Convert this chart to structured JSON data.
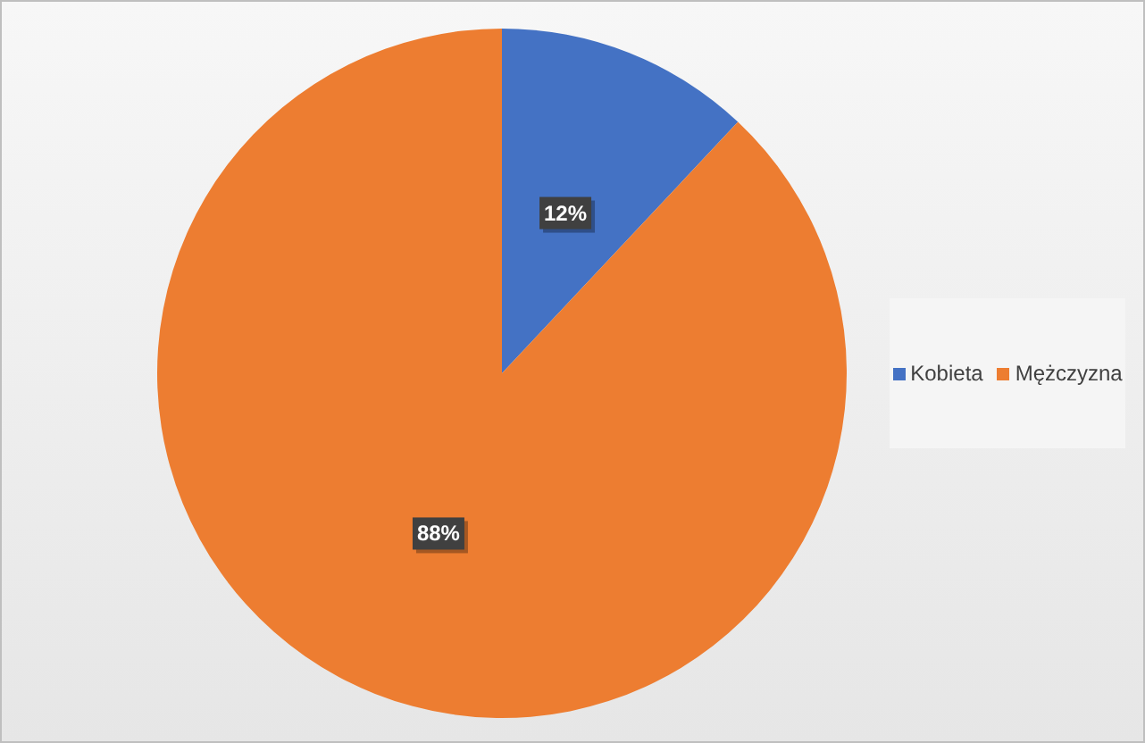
{
  "chart_data": {
    "type": "pie",
    "categories": [
      "Kobieta",
      "Mężczyzna"
    ],
    "values": [
      12,
      88
    ],
    "colors": [
      "#4472c4",
      "#ed7d31"
    ],
    "value_labels": [
      "12%",
      "88%"
    ],
    "legend": "right"
  }
}
